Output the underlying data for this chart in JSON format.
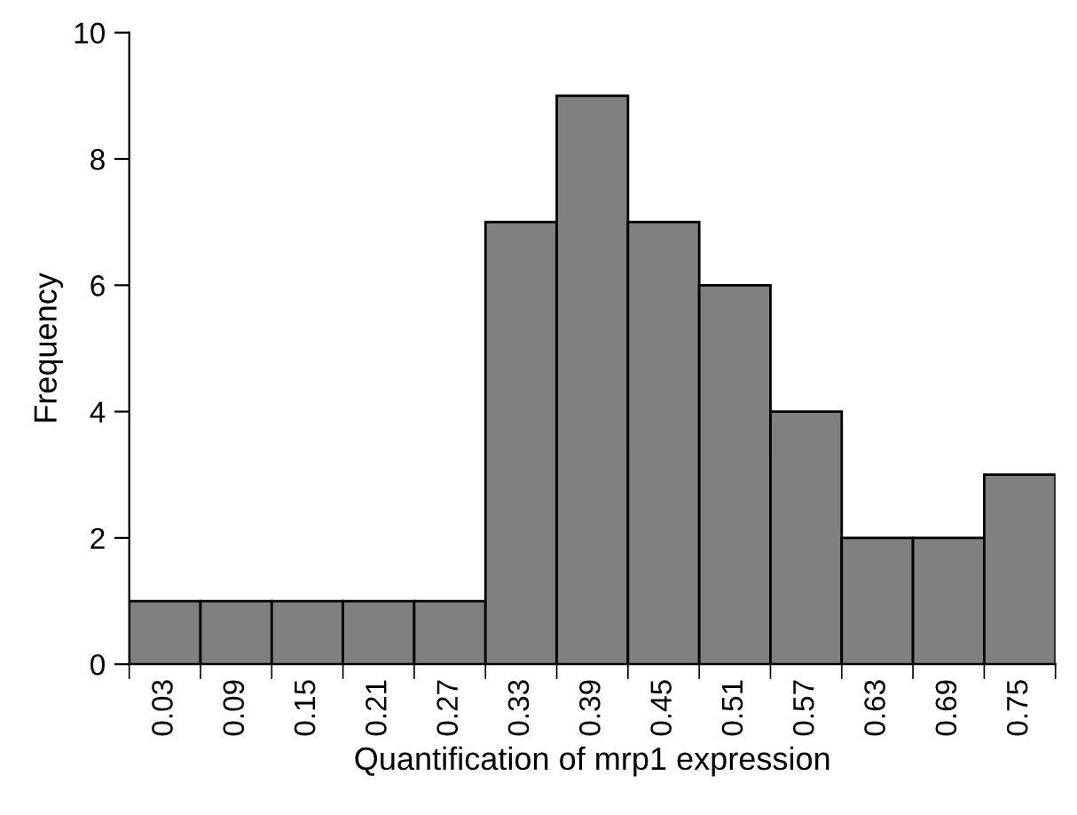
{
  "chart_data": {
    "type": "bar",
    "xlabel": "Quantification of mrp1 expression",
    "ylabel": "Frequency",
    "categories": [
      "0.03",
      "0.09",
      "0.15",
      "0.21",
      "0.27",
      "0.33",
      "0.39",
      "0.45",
      "0.51",
      "0.57",
      "0.63",
      "0.69",
      "0.75"
    ],
    "values": [
      1,
      1,
      1,
      1,
      1,
      7,
      9,
      7,
      6,
      4,
      2,
      2,
      3
    ],
    "color": "#808080",
    "ylim": [
      0,
      10
    ],
    "yticks": [
      0,
      2,
      4,
      6,
      8,
      10
    ],
    "grid": false,
    "legend": false
  }
}
